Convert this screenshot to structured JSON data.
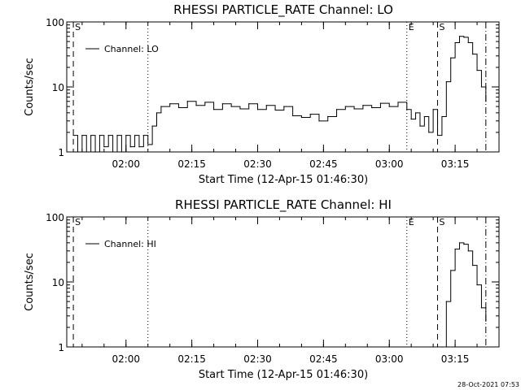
{
  "chart_data": [
    {
      "type": "line",
      "title": "RHESSI PARTICLE_RATE Channel: LO",
      "xlabel": "Start Time (12-Apr-15 01:46:30)",
      "ylabel": "Counts/sec",
      "y_scale": "log",
      "ylim": [
        1,
        100
      ],
      "xlim": [
        "01:46:30",
        "03:25:00"
      ],
      "x_ticks": [
        "02:00",
        "02:15",
        "02:30",
        "02:45",
        "03:00",
        "03:15"
      ],
      "y_ticks": [
        "1",
        "10",
        "100"
      ],
      "legend": {
        "placement": "top-left",
        "entries": [
          "Channel: LO"
        ]
      },
      "event_markers": [
        {
          "label": "S",
          "time": "01:48:00",
          "style": "dashed"
        },
        {
          "label": "",
          "time": "02:05:00",
          "style": "dotted"
        },
        {
          "label": "E",
          "time": "03:04:00",
          "style": "dotted"
        },
        {
          "label": "S",
          "time": "03:11:00",
          "style": "dashed"
        },
        {
          "label": "",
          "time": "03:22:00",
          "style": "dash-dot"
        }
      ],
      "series": [
        {
          "name": "Channel: LO",
          "x": [
            "01:48:00",
            "01:49:00",
            "01:50:00",
            "01:51:00",
            "01:52:00",
            "01:53:00",
            "01:54:00",
            "01:55:00",
            "01:56:00",
            "01:57:00",
            "01:58:00",
            "01:59:00",
            "02:00:00",
            "02:01:00",
            "02:02:00",
            "02:03:00",
            "02:04:00",
            "02:05:00",
            "02:06:00",
            "02:07:00",
            "02:08:00",
            "02:10:00",
            "02:12:00",
            "02:14:00",
            "02:16:00",
            "02:18:00",
            "02:20:00",
            "02:22:00",
            "02:24:00",
            "02:26:00",
            "02:28:00",
            "02:30:00",
            "02:32:00",
            "02:34:00",
            "02:36:00",
            "02:38:00",
            "02:40:00",
            "02:42:00",
            "02:44:00",
            "02:46:00",
            "02:48:00",
            "02:50:00",
            "02:52:00",
            "02:54:00",
            "02:56:00",
            "02:58:00",
            "03:00:00",
            "03:02:00",
            "03:04:00",
            "03:05:00",
            "03:06:00",
            "03:07:00",
            "03:08:00",
            "03:09:00",
            "03:10:00",
            "03:11:00",
            "03:12:00",
            "03:13:00",
            "03:14:00",
            "03:15:00",
            "03:16:00",
            "03:17:00",
            "03:18:00",
            "03:19:00",
            "03:20:00",
            "03:21:00",
            "03:22:00"
          ],
          "values": [
            1.8,
            1,
            1.8,
            1,
            1.8,
            1,
            1.8,
            1.2,
            1.8,
            1,
            1.8,
            1,
            1.8,
            1.2,
            1.8,
            1.2,
            1.8,
            1.3,
            2.5,
            4,
            5,
            5.5,
            4.8,
            6,
            5.2,
            5.8,
            4.5,
            5.5,
            5,
            4.6,
            5.5,
            4.5,
            5.2,
            4.4,
            5,
            3.6,
            3.4,
            3.8,
            3,
            3.5,
            4.5,
            5,
            4.6,
            5.2,
            4.8,
            5.6,
            5,
            5.8,
            4.5,
            3.2,
            4,
            2.5,
            3.5,
            2,
            4.5,
            1.8,
            3.5,
            12,
            28,
            48,
            60,
            58,
            48,
            32,
            18,
            10,
            6
          ]
        }
      ]
    },
    {
      "type": "line",
      "title": "RHESSI PARTICLE_RATE Channel: HI",
      "xlabel": "Start Time (12-Apr-15 01:46:30)",
      "ylabel": "Counts/sec",
      "y_scale": "log",
      "ylim": [
        1,
        100
      ],
      "xlim": [
        "01:46:30",
        "03:25:00"
      ],
      "x_ticks": [
        "02:00",
        "02:15",
        "02:30",
        "02:45",
        "03:00",
        "03:15"
      ],
      "y_ticks": [
        "1",
        "10",
        "100"
      ],
      "legend": {
        "placement": "top-left",
        "entries": [
          "Channel: HI"
        ]
      },
      "event_markers": [
        {
          "label": "S",
          "time": "01:48:00",
          "style": "dashed"
        },
        {
          "label": "",
          "time": "02:05:00",
          "style": "dotted"
        },
        {
          "label": "E",
          "time": "03:04:00",
          "style": "dotted"
        },
        {
          "label": "S",
          "time": "03:11:00",
          "style": "dashed"
        },
        {
          "label": "",
          "time": "03:22:00",
          "style": "dash-dot"
        }
      ],
      "series": [
        {
          "name": "Channel: HI",
          "x": [
            "03:12:00",
            "03:13:00",
            "03:14:00",
            "03:15:00",
            "03:16:00",
            "03:17:00",
            "03:18:00",
            "03:19:00",
            "03:20:00",
            "03:21:00",
            "03:22:00"
          ],
          "values": [
            1,
            5,
            15,
            32,
            40,
            38,
            30,
            18,
            9,
            4,
            2.5
          ]
        }
      ]
    }
  ],
  "timestamp": "28-Oct-2021 07:53"
}
